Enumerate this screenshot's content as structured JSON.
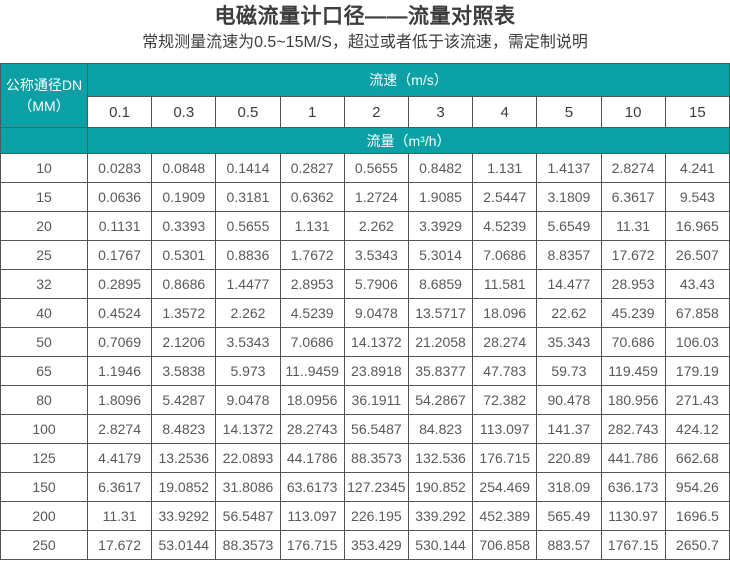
{
  "page": {
    "title": "电磁流量计口径——流量对照表",
    "subtitle": "常规测量流速为0.5~15M/S，超过或者低于该流速，需定制说明"
  },
  "colors": {
    "header_teal": "#0aa0a6",
    "table_border": "#555555",
    "title_text": "#3d3d3d",
    "data_text": "#58595b"
  },
  "table": {
    "dn_header_line1": "公称通径DN",
    "dn_header_line2": "（MM）",
    "velocity_header": "流速（m/s）",
    "flow_header": "流量（m³/h）"
  },
  "chart_data": {
    "type": "table",
    "title": "电磁流量计口径——流量对照表",
    "note": "常规测量流速为0.5~15M/S，超过或者低于该流速，需定制说明",
    "row_header_label": "公称通径DN（MM）",
    "column_group_label": "流速（m/s）",
    "value_group_label": "流量（m³/h）",
    "velocities_m_s": [
      "0.1",
      "0.3",
      "0.5",
      "1",
      "2",
      "3",
      "4",
      "5",
      "10",
      "15"
    ],
    "rows": [
      {
        "dn": "10",
        "flows": [
          "0.0283",
          "0.0848",
          "0.1414",
          "0.2827",
          "0.5655",
          "0.8482",
          "1.131",
          "1.4137",
          "2.8274",
          "4.241"
        ]
      },
      {
        "dn": "15",
        "flows": [
          "0.0636",
          "0.1909",
          "0.3181",
          "0.6362",
          "1.2724",
          "1.9085",
          "2.5447",
          "3.1809",
          "6.3617",
          "9.543"
        ]
      },
      {
        "dn": "20",
        "flows": [
          "0.1131",
          "0.3393",
          "0.5655",
          "1.131",
          "2.262",
          "3.3929",
          "4.5239",
          "5.6549",
          "11.31",
          "16.965"
        ]
      },
      {
        "dn": "25",
        "flows": [
          "0.1767",
          "0.5301",
          "0.8836",
          "1.7672",
          "3.5343",
          "5.3014",
          "7.0686",
          "8.8357",
          "17.672",
          "26.507"
        ]
      },
      {
        "dn": "32",
        "flows": [
          "0.2895",
          "0.8686",
          "1.4477",
          "2.8953",
          "5.7906",
          "8.6859",
          "11.581",
          "14.477",
          "28.953",
          "43.43"
        ]
      },
      {
        "dn": "40",
        "flows": [
          "0.4524",
          "1.3572",
          "2.262",
          "4.5239",
          "9.0478",
          "13.5717",
          "18.096",
          "22.62",
          "45.239",
          "67.858"
        ]
      },
      {
        "dn": "50",
        "flows": [
          "0.7069",
          "2.1206",
          "3.5343",
          "7.0686",
          "14.1372",
          "21.2058",
          "28.274",
          "35.343",
          "70.686",
          "106.03"
        ]
      },
      {
        "dn": "65",
        "flows": [
          "1.1946",
          "3.5838",
          "5.973",
          "11..9459",
          "23.8918",
          "35.8377",
          "47.783",
          "59.73",
          "119.459",
          "179.19"
        ]
      },
      {
        "dn": "80",
        "flows": [
          "1.8096",
          "5.4287",
          "9.0478",
          "18.0956",
          "36.1911",
          "54.2867",
          "72.382",
          "90.478",
          "180.956",
          "271.43"
        ]
      },
      {
        "dn": "100",
        "flows": [
          "2.8274",
          "8.4823",
          "14.1372",
          "28.2743",
          "56.5487",
          "84.823",
          "113.097",
          "141.37",
          "282.743",
          "424.12"
        ]
      },
      {
        "dn": "125",
        "flows": [
          "4.4179",
          "13.2536",
          "22.0893",
          "44.1786",
          "88.3573",
          "132.536",
          "176.715",
          "220.89",
          "441.786",
          "662.68"
        ]
      },
      {
        "dn": "150",
        "flows": [
          "6.3617",
          "19.0852",
          "31.8086",
          "63.6173",
          "127.2345",
          "190.852",
          "254.469",
          "318.09",
          "636.173",
          "954.26"
        ]
      },
      {
        "dn": "200",
        "flows": [
          "11.31",
          "33.9292",
          "56.5487",
          "113.097",
          "226.195",
          "339.292",
          "452.389",
          "565.49",
          "1130.97",
          "1696.5"
        ]
      },
      {
        "dn": "250",
        "flows": [
          "17.672",
          "53.0144",
          "88.3573",
          "176.715",
          "353.429",
          "530.144",
          "706.858",
          "883.57",
          "1767.15",
          "2650.7"
        ]
      }
    ]
  }
}
